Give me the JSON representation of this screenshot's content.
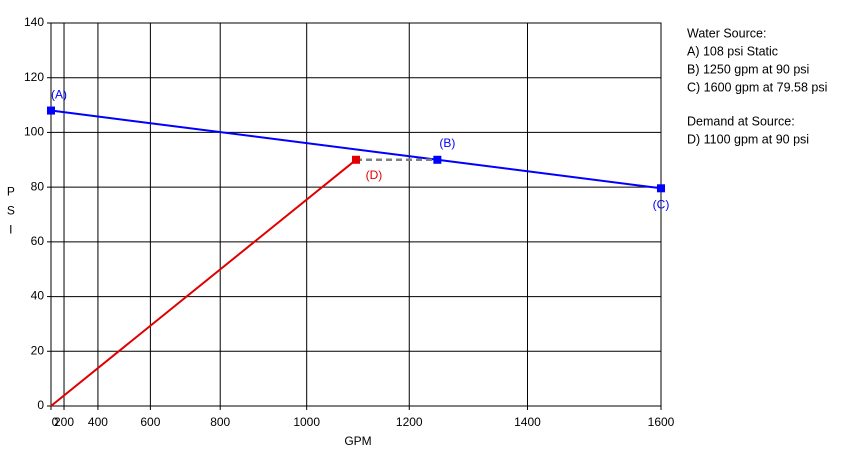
{
  "chart_data": {
    "type": "line",
    "xlabel": "GPM",
    "ylabel": "PSI",
    "xlim": [
      0,
      1600
    ],
    "ylim": [
      0,
      140
    ],
    "xticks": [
      0,
      200,
      400,
      600,
      800,
      1000,
      1200,
      1400,
      1600
    ],
    "yticks": [
      0,
      20,
      40,
      60,
      80,
      100,
      120,
      140
    ],
    "x_scale_power": 1.85,
    "grid": true,
    "series": [
      {
        "name": "Water Source:",
        "color": "#0000ff",
        "x": [
          0,
          1250,
          1600
        ],
        "values": [
          108,
          90,
          79.58
        ],
        "point_labels": [
          "(A)",
          "(B)",
          "(C)"
        ],
        "notes": [
          "A) 108 psi Static",
          "B) 1250 gpm at 90 psi",
          "C) 1600 gpm at 79.58 psi"
        ]
      },
      {
        "name": "Demand at Source:",
        "color": "#e00000",
        "x": [
          0,
          1100
        ],
        "values": [
          0,
          90
        ],
        "point_labels": [
          null,
          "(D)"
        ],
        "notes": [
          "D) 1100 gpm at 90 psi"
        ]
      },
      {
        "color": "#808080",
        "dashed": true,
        "x": [
          1100,
          1250
        ],
        "values": [
          90,
          90
        ]
      }
    ]
  }
}
